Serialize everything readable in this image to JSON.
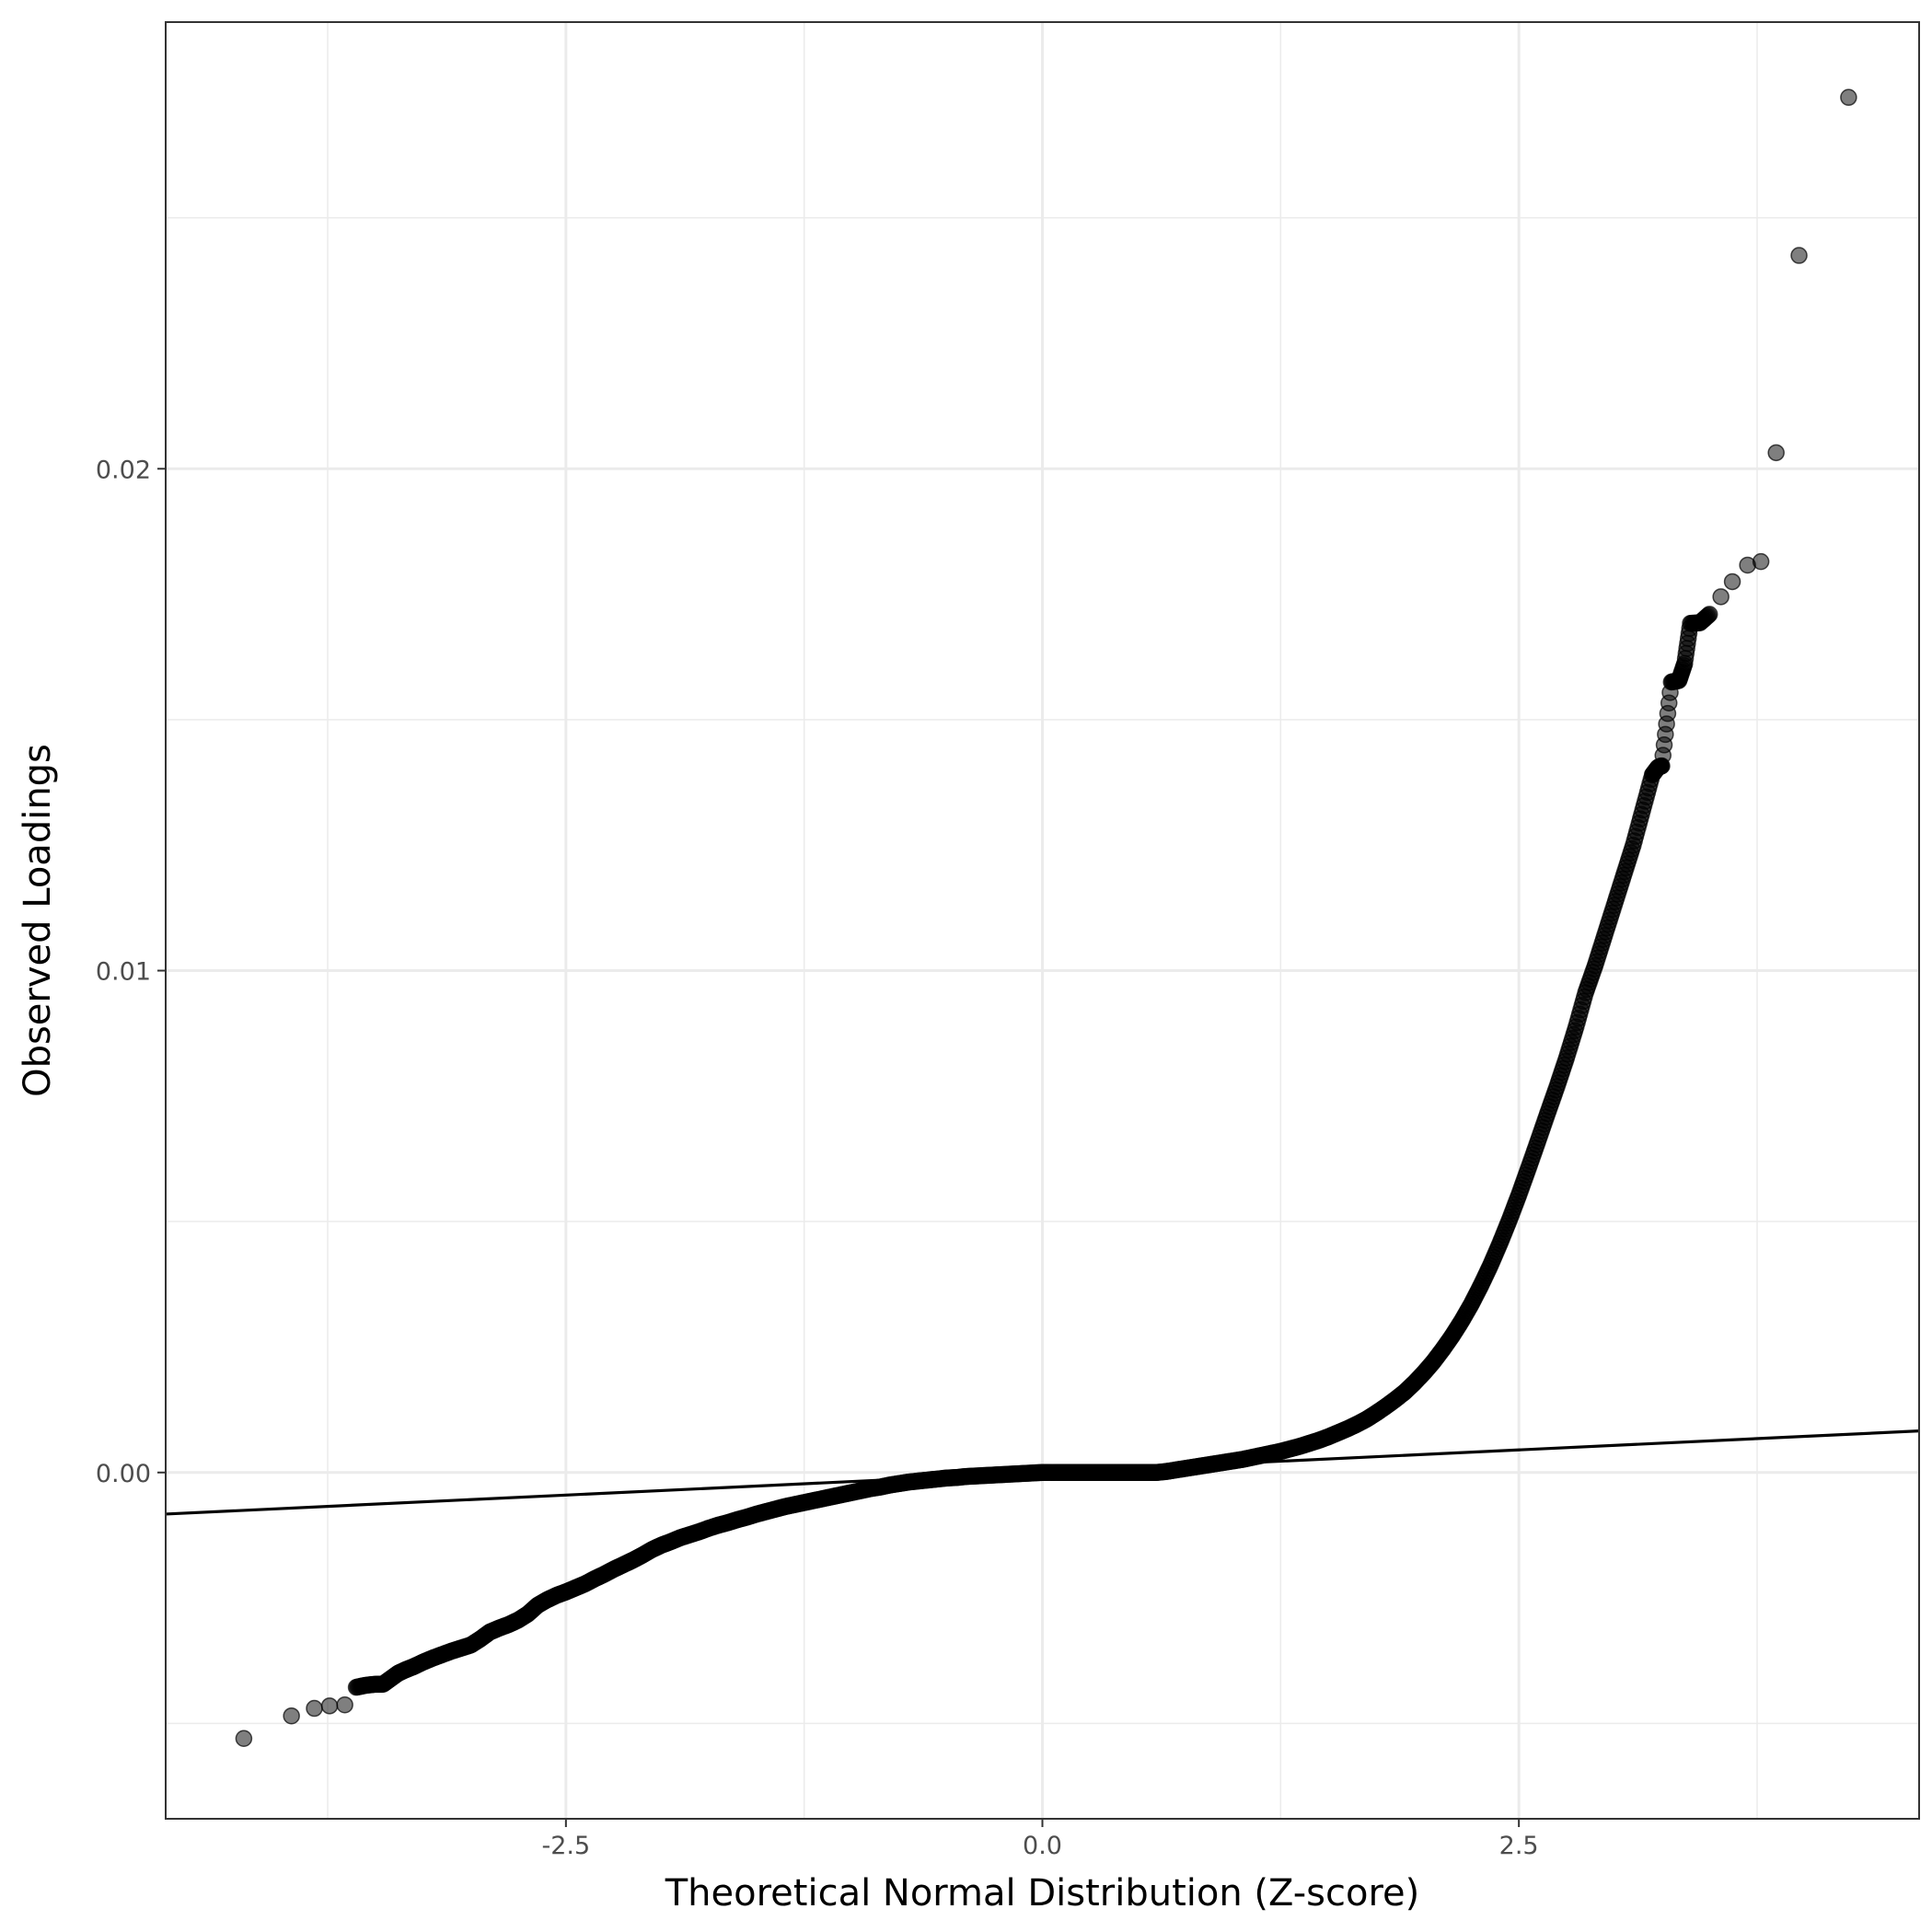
{
  "chart_data": {
    "type": "scatter",
    "title": "",
    "xlabel": "Theoretical Normal Distribution (Z-score)",
    "ylabel": "Observed Loadings",
    "xlim": [
      -4.6,
      4.6
    ],
    "ylim": [
      -0.0069,
      0.0289
    ],
    "x_ticks": [
      {
        "value": -2.5,
        "label": "-2.5"
      },
      {
        "value": 0.0,
        "label": "0.0"
      },
      {
        "value": 2.5,
        "label": "2.5"
      }
    ],
    "y_ticks": [
      {
        "value": 0.0,
        "label": "0.00"
      },
      {
        "value": 0.01,
        "label": "0.01"
      },
      {
        "value": 0.02,
        "label": "0.02"
      }
    ],
    "x_minor_grid": [
      -3.75,
      -1.25,
      1.25,
      3.75
    ],
    "y_minor_grid": [
      -0.005,
      0.005,
      0.015,
      0.025
    ],
    "grid": true,
    "reference_line": {
      "intercept": 0.0,
      "slope": 0.00018
    },
    "series": [
      {
        "points": [
          [
            -4.19,
            -0.0053
          ],
          [
            -3.94,
            -0.00485
          ],
          [
            -3.82,
            -0.0047
          ],
          [
            -3.74,
            -0.00465
          ],
          [
            -3.66,
            -0.00463
          ],
          [
            -3.6,
            -0.00428
          ],
          [
            -3.55,
            -0.00424
          ],
          [
            -3.5,
            -0.00422
          ],
          [
            -3.46,
            -0.00422
          ],
          [
            -3.42,
            -0.00411
          ],
          [
            -3.38,
            -0.004
          ],
          [
            -3.34,
            -0.00393
          ],
          [
            -3.3,
            -0.00387
          ],
          [
            -3.25,
            -0.00378
          ],
          [
            -3.2,
            -0.0037
          ],
          [
            -3.15,
            -0.00363
          ],
          [
            -3.1,
            -0.00356
          ],
          [
            -3.05,
            -0.0035
          ],
          [
            -3.0,
            -0.00344
          ],
          [
            -2.95,
            -0.00332
          ],
          [
            -2.9,
            -0.00318
          ],
          [
            -2.85,
            -0.0031
          ],
          [
            -2.8,
            -0.00303
          ],
          [
            -2.75,
            -0.00294
          ],
          [
            -2.7,
            -0.00282
          ],
          [
            -2.65,
            -0.00265
          ],
          [
            -2.6,
            -0.00254
          ],
          [
            -2.55,
            -0.00245
          ],
          [
            -2.5,
            -0.00238
          ],
          [
            -2.45,
            -0.0023
          ],
          [
            -2.4,
            -0.00222
          ],
          [
            -2.35,
            -0.00212
          ],
          [
            -2.3,
            -0.00203
          ],
          [
            -2.25,
            -0.00193
          ],
          [
            -2.2,
            -0.00184
          ],
          [
            -2.15,
            -0.00175
          ],
          [
            -2.1,
            -0.00165
          ],
          [
            -2.05,
            -0.00154
          ],
          [
            -2.0,
            -0.00145
          ],
          [
            -1.95,
            -0.00138
          ],
          [
            -1.9,
            -0.0013
          ],
          [
            -1.85,
            -0.00124
          ],
          [
            -1.8,
            -0.00118
          ],
          [
            -1.75,
            -0.00111
          ],
          [
            -1.7,
            -0.00105
          ],
          [
            -1.65,
            -0.001
          ],
          [
            -1.6,
            -0.00094
          ],
          [
            -1.55,
            -0.00089
          ],
          [
            -1.5,
            -0.00083
          ],
          [
            -1.45,
            -0.00078
          ],
          [
            -1.4,
            -0.00073
          ],
          [
            -1.35,
            -0.00068
          ],
          [
            -1.3,
            -0.00064
          ],
          [
            -1.25,
            -0.0006
          ],
          [
            -1.2,
            -0.00056
          ],
          [
            -1.15,
            -0.00052
          ],
          [
            -1.1,
            -0.00048
          ],
          [
            -1.05,
            -0.00044
          ],
          [
            -1.0,
            -0.0004
          ],
          [
            -0.95,
            -0.00036
          ],
          [
            -0.9,
            -0.00032
          ],
          [
            -0.85,
            -0.00029
          ],
          [
            -0.8,
            -0.00025
          ],
          [
            -0.75,
            -0.00022
          ],
          [
            -0.7,
            -0.00019
          ],
          [
            -0.65,
            -0.00017
          ],
          [
            -0.6,
            -0.00015
          ],
          [
            -0.55,
            -0.00013
          ],
          [
            -0.5,
            -0.00011
          ],
          [
            -0.45,
            -0.0001
          ],
          [
            -0.4,
            -8e-05
          ],
          [
            -0.35,
            -7e-05
          ],
          [
            -0.3,
            -6e-05
          ],
          [
            -0.25,
            -5e-05
          ],
          [
            -0.2,
            -4e-05
          ],
          [
            -0.15,
            -3e-05
          ],
          [
            -0.1,
            -2e-05
          ],
          [
            -0.05,
            -1e-05
          ],
          [
            0.0,
            0.0
          ],
          [
            0.05,
            0.0
          ],
          [
            0.1,
            0.0
          ],
          [
            0.15,
            0.0
          ],
          [
            0.2,
            0.0
          ],
          [
            0.25,
            0.0
          ],
          [
            0.3,
            0.0
          ],
          [
            0.35,
            0.0
          ],
          [
            0.4,
            0.0
          ],
          [
            0.45,
            0.0
          ],
          [
            0.5,
            0.0
          ],
          [
            0.55,
            0.0
          ],
          [
            0.6,
            0.0
          ],
          [
            0.65,
            2e-05
          ],
          [
            0.7,
            5e-05
          ],
          [
            0.75,
            8e-05
          ],
          [
            0.8,
            0.00011
          ],
          [
            0.85,
            0.00014
          ],
          [
            0.9,
            0.00017
          ],
          [
            0.95,
            0.0002
          ],
          [
            1.0,
            0.00023
          ],
          [
            1.05,
            0.00026
          ],
          [
            1.1,
            0.0003
          ],
          [
            1.15,
            0.00034
          ],
          [
            1.2,
            0.00038
          ],
          [
            1.25,
            0.00042
          ],
          [
            1.3,
            0.00047
          ],
          [
            1.35,
            0.00052
          ],
          [
            1.4,
            0.00058
          ],
          [
            1.45,
            0.00064
          ],
          [
            1.5,
            0.00071
          ],
          [
            1.55,
            0.00079
          ],
          [
            1.6,
            0.00087
          ],
          [
            1.65,
            0.00096
          ],
          [
            1.7,
            0.00106
          ],
          [
            1.75,
            0.00118
          ],
          [
            1.8,
            0.00131
          ],
          [
            1.85,
            0.00145
          ],
          [
            1.9,
            0.0016
          ],
          [
            1.95,
            0.00178
          ],
          [
            2.0,
            0.00198
          ],
          [
            2.05,
            0.0022
          ],
          [
            2.1,
            0.00245
          ],
          [
            2.15,
            0.00272
          ],
          [
            2.2,
            0.00302
          ],
          [
            2.25,
            0.00335
          ],
          [
            2.3,
            0.00372
          ],
          [
            2.35,
            0.00412
          ],
          [
            2.4,
            0.00456
          ],
          [
            2.45,
            0.00503
          ],
          [
            2.5,
            0.00553
          ],
          [
            2.55,
            0.00606
          ],
          [
            2.6,
            0.0066
          ],
          [
            2.65,
            0.00715
          ],
          [
            2.7,
            0.00769
          ],
          [
            2.75,
            0.00826
          ],
          [
            2.8,
            0.00888
          ],
          [
            2.85,
            0.00956
          ],
          [
            2.9,
            0.0101
          ],
          [
            2.95,
            0.0107
          ],
          [
            3.0,
            0.0113
          ],
          [
            3.05,
            0.0119
          ],
          [
            3.1,
            0.0125
          ],
          [
            3.15,
            0.0132
          ],
          [
            3.2,
            0.0139
          ],
          [
            3.23,
            0.01405
          ],
          [
            3.25,
            0.01408
          ],
          [
            3.3,
            0.01575
          ],
          [
            3.34,
            0.01578
          ],
          [
            3.37,
            0.01612
          ],
          [
            3.4,
            0.01692
          ],
          [
            3.45,
            0.01693
          ],
          [
            3.5,
            0.0171
          ],
          [
            3.56,
            0.01745
          ],
          [
            3.62,
            0.01775
          ],
          [
            3.7,
            0.01808
          ],
          [
            3.77,
            0.01815
          ],
          [
            3.85,
            0.02032
          ],
          [
            3.97,
            0.02425
          ],
          [
            4.23,
            0.0274
          ]
        ]
      }
    ]
  }
}
